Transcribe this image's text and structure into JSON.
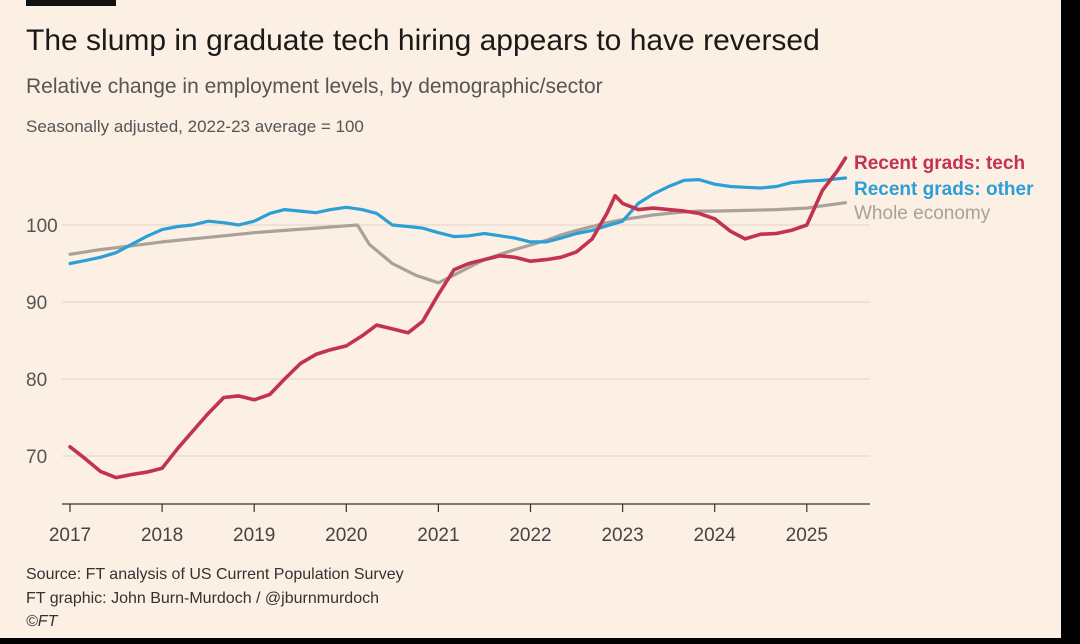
{
  "chart": {
    "title": "The slump in graduate tech hiring appears to have reversed",
    "subtitle": "Relative change in employment levels, by demographic/sector",
    "note": "Seasonally adjusted, 2022-23 average = 100",
    "source": "Source: FT analysis of US Current Population Survey",
    "credit": "FT graphic: John Burn-Murdoch / @jburnmurdoch",
    "copyright": "©FT"
  },
  "chart_data": {
    "type": "line",
    "ylim": [
      64,
      110
    ],
    "xlim": [
      2017,
      2025.75
    ],
    "y_ticks": [
      70,
      80,
      90,
      100
    ],
    "x_ticks": [
      2017,
      2018,
      2019,
      2020,
      2021,
      2022,
      2023,
      2024,
      2025
    ],
    "grid": true,
    "legend": "right, at line ends",
    "series": [
      {
        "name": "Recent grads: tech",
        "color": "#c2334d",
        "points": [
          [
            2017.0,
            71.2
          ],
          [
            2017.17,
            69.6
          ],
          [
            2017.33,
            68.0
          ],
          [
            2017.5,
            67.2
          ],
          [
            2017.67,
            67.6
          ],
          [
            2017.83,
            67.9
          ],
          [
            2018.0,
            68.4
          ],
          [
            2018.17,
            71.0
          ],
          [
            2018.33,
            73.2
          ],
          [
            2018.5,
            75.5
          ],
          [
            2018.67,
            77.6
          ],
          [
            2018.83,
            77.8
          ],
          [
            2019.0,
            77.3
          ],
          [
            2019.17,
            78.0
          ],
          [
            2019.33,
            80.0
          ],
          [
            2019.5,
            82.0
          ],
          [
            2019.67,
            83.2
          ],
          [
            2019.83,
            83.8
          ],
          [
            2020.0,
            84.3
          ],
          [
            2020.17,
            85.6
          ],
          [
            2020.33,
            87.0
          ],
          [
            2020.5,
            86.5
          ],
          [
            2020.67,
            86.0
          ],
          [
            2020.83,
            87.5
          ],
          [
            2021.0,
            91.0
          ],
          [
            2021.17,
            94.2
          ],
          [
            2021.33,
            95.0
          ],
          [
            2021.5,
            95.5
          ],
          [
            2021.67,
            96.0
          ],
          [
            2021.83,
            95.8
          ],
          [
            2022.0,
            95.3
          ],
          [
            2022.17,
            95.5
          ],
          [
            2022.33,
            95.8
          ],
          [
            2022.5,
            96.5
          ],
          [
            2022.67,
            98.2
          ],
          [
            2022.83,
            101.5
          ],
          [
            2022.92,
            103.8
          ],
          [
            2023.0,
            102.8
          ],
          [
            2023.17,
            102.0
          ],
          [
            2023.33,
            102.2
          ],
          [
            2023.5,
            102.0
          ],
          [
            2023.67,
            101.8
          ],
          [
            2023.83,
            101.5
          ],
          [
            2024.0,
            100.8
          ],
          [
            2024.17,
            99.2
          ],
          [
            2024.33,
            98.2
          ],
          [
            2024.5,
            98.8
          ],
          [
            2024.67,
            98.9
          ],
          [
            2024.83,
            99.3
          ],
          [
            2025.0,
            100.0
          ],
          [
            2025.17,
            104.5
          ],
          [
            2025.33,
            107.0
          ],
          [
            2025.42,
            108.7
          ]
        ]
      },
      {
        "name": "Recent grads: other",
        "color": "#2b9fd6",
        "points": [
          [
            2017.0,
            95.0
          ],
          [
            2017.17,
            95.4
          ],
          [
            2017.33,
            95.8
          ],
          [
            2017.5,
            96.4
          ],
          [
            2017.67,
            97.5
          ],
          [
            2017.83,
            98.5
          ],
          [
            2018.0,
            99.4
          ],
          [
            2018.17,
            99.8
          ],
          [
            2018.33,
            100.0
          ],
          [
            2018.5,
            100.5
          ],
          [
            2018.67,
            100.3
          ],
          [
            2018.83,
            100.0
          ],
          [
            2019.0,
            100.5
          ],
          [
            2019.17,
            101.5
          ],
          [
            2019.33,
            102.0
          ],
          [
            2019.5,
            101.8
          ],
          [
            2019.67,
            101.6
          ],
          [
            2019.83,
            102.0
          ],
          [
            2020.0,
            102.3
          ],
          [
            2020.17,
            102.0
          ],
          [
            2020.33,
            101.5
          ],
          [
            2020.5,
            100.0
          ],
          [
            2020.67,
            99.8
          ],
          [
            2020.83,
            99.6
          ],
          [
            2021.0,
            99.0
          ],
          [
            2021.17,
            98.5
          ],
          [
            2021.33,
            98.6
          ],
          [
            2021.5,
            98.9
          ],
          [
            2021.67,
            98.6
          ],
          [
            2021.83,
            98.3
          ],
          [
            2022.0,
            97.8
          ],
          [
            2022.17,
            97.8
          ],
          [
            2022.33,
            98.3
          ],
          [
            2022.5,
            98.9
          ],
          [
            2022.67,
            99.3
          ],
          [
            2022.83,
            99.9
          ],
          [
            2023.0,
            100.5
          ],
          [
            2023.17,
            102.8
          ],
          [
            2023.33,
            104.0
          ],
          [
            2023.5,
            105.0
          ],
          [
            2023.67,
            105.8
          ],
          [
            2023.83,
            105.9
          ],
          [
            2024.0,
            105.3
          ],
          [
            2024.17,
            105.0
          ],
          [
            2024.33,
            104.9
          ],
          [
            2024.5,
            104.8
          ],
          [
            2024.67,
            105.0
          ],
          [
            2024.83,
            105.5
          ],
          [
            2025.0,
            105.7
          ],
          [
            2025.17,
            105.8
          ],
          [
            2025.33,
            106.0
          ],
          [
            2025.42,
            106.1
          ]
        ]
      },
      {
        "name": "Whole economy",
        "color": "#aaa19c",
        "points": [
          [
            2017.0,
            96.2
          ],
          [
            2017.33,
            96.8
          ],
          [
            2017.67,
            97.3
          ],
          [
            2018.0,
            97.8
          ],
          [
            2018.33,
            98.2
          ],
          [
            2018.67,
            98.6
          ],
          [
            2019.0,
            99.0
          ],
          [
            2019.33,
            99.3
          ],
          [
            2019.67,
            99.6
          ],
          [
            2020.0,
            99.9
          ],
          [
            2020.12,
            100.0
          ],
          [
            2020.25,
            97.5
          ],
          [
            2020.5,
            95.0
          ],
          [
            2020.75,
            93.5
          ],
          [
            2021.0,
            92.5
          ],
          [
            2021.17,
            93.5
          ],
          [
            2021.33,
            94.5
          ],
          [
            2021.5,
            95.5
          ],
          [
            2021.67,
            96.2
          ],
          [
            2021.83,
            96.8
          ],
          [
            2022.0,
            97.4
          ],
          [
            2022.17,
            98.0
          ],
          [
            2022.33,
            98.7
          ],
          [
            2022.5,
            99.3
          ],
          [
            2022.67,
            99.8
          ],
          [
            2022.83,
            100.3
          ],
          [
            2023.0,
            100.7
          ],
          [
            2023.17,
            101.0
          ],
          [
            2023.33,
            101.3
          ],
          [
            2023.5,
            101.5
          ],
          [
            2023.67,
            101.7
          ],
          [
            2023.83,
            101.8
          ],
          [
            2024.0,
            101.8
          ],
          [
            2024.33,
            101.9
          ],
          [
            2024.67,
            102.0
          ],
          [
            2025.0,
            102.2
          ],
          [
            2025.17,
            102.5
          ],
          [
            2025.42,
            102.9
          ]
        ]
      }
    ]
  }
}
